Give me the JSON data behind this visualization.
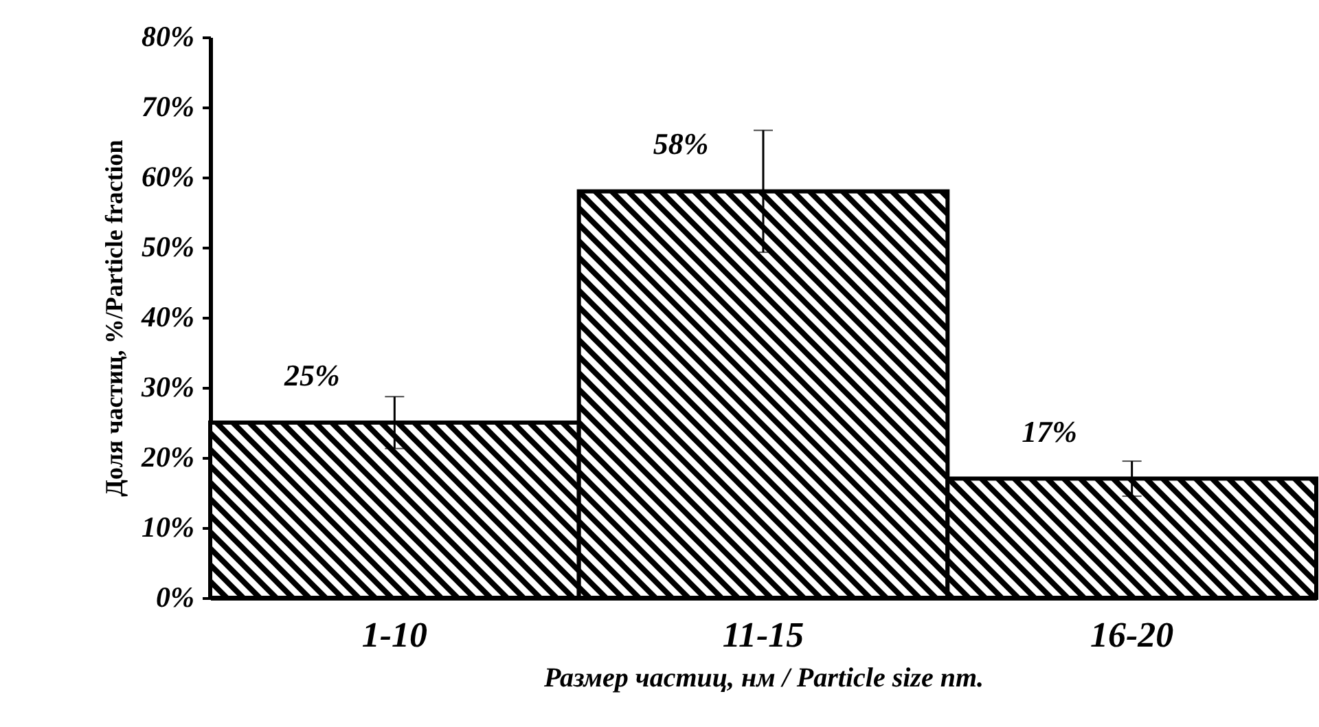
{
  "chart_data": {
    "type": "bar",
    "xlabel": "Размер частиц, нм / Particle size nm.",
    "ylabel": "Доля частиц, %/Particle fraction",
    "categories": [
      "1-10",
      "11-15",
      "16-20"
    ],
    "values": [
      25,
      58,
      17
    ],
    "errors": [
      3.7,
      8.7,
      2.5
    ],
    "value_labels": [
      "25%",
      "58%",
      "17%"
    ],
    "color": "#000000",
    "ylim": [
      0,
      80
    ],
    "yticks": [
      {
        "value": 0,
        "label": "0%"
      },
      {
        "value": 10,
        "label": "10%"
      },
      {
        "value": 20,
        "label": "20%"
      },
      {
        "value": 30,
        "label": "30%"
      },
      {
        "value": 40,
        "label": "40%"
      },
      {
        "value": 50,
        "label": "50%"
      },
      {
        "value": 60,
        "label": "60%"
      },
      {
        "value": 70,
        "label": "70%"
      },
      {
        "value": 80,
        "label": "80%"
      }
    ],
    "grid": false
  }
}
